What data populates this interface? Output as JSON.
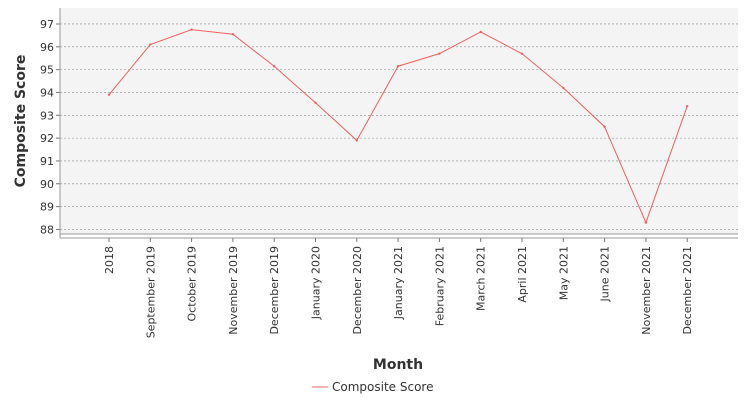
{
  "chart_data": {
    "type": "line",
    "categories": [
      "2018",
      "September 2019",
      "October 2019",
      "November 2019",
      "December 2019",
      "January 2020",
      "December 2020",
      "January 2021",
      "February 2021",
      "March 2021",
      "April 2021",
      "May 2021",
      "June 2021",
      "November 2021",
      "December 2021"
    ],
    "series": [
      {
        "name": "Composite Score",
        "color": "#f06060",
        "values": [
          93.9,
          96.1,
          96.75,
          96.55,
          95.15,
          93.55,
          91.9,
          95.15,
          95.7,
          96.65,
          95.7,
          94.2,
          92.5,
          88.3,
          93.4
        ]
      }
    ],
    "xlabel": "Month",
    "ylabel": "Composite Score",
    "ylim": [
      87.8,
      97.7
    ],
    "yticks": [
      88,
      89,
      90,
      91,
      92,
      93,
      94,
      95,
      96,
      97
    ],
    "grid": true,
    "legend_position": "bottom"
  }
}
